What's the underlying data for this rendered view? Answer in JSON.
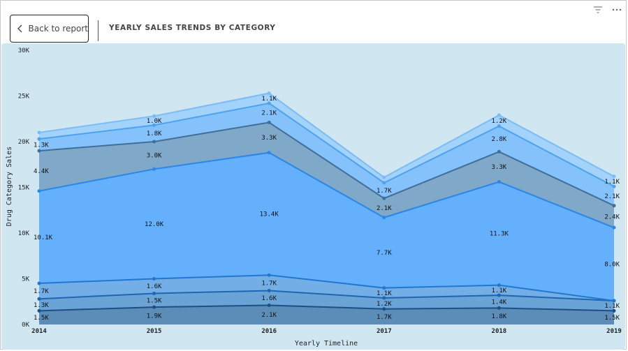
{
  "header": {
    "back_label": "Back to report",
    "title": "YEARLY SALES TRENDS BY CATEGORY",
    "back_icon": "chevron-left-icon",
    "filter_icon": "filter-icon",
    "more_icon": "more-options-icon"
  },
  "chart_data": {
    "type": "area",
    "stacked": true,
    "categories": [
      "2014",
      "2015",
      "2016",
      "2017",
      "2018",
      "2019"
    ],
    "xlabel": "Yearly Timeline",
    "ylabel": "Drug Category Sales",
    "ylim": [
      0,
      30000
    ],
    "yticks": [
      {
        "value": 0,
        "label": "0K"
      },
      {
        "value": 5000,
        "label": "5K"
      },
      {
        "value": 10000,
        "label": "10K"
      },
      {
        "value": 15000,
        "label": "15K"
      },
      {
        "value": 20000,
        "label": "20K"
      },
      {
        "value": 25000,
        "label": "25K"
      },
      {
        "value": 30000,
        "label": "30K"
      }
    ],
    "grid": false,
    "legend": "none",
    "series": [
      {
        "color": "#5b8db8",
        "line": "#1d4f86",
        "values": [
          1500,
          1900,
          2100,
          1700,
          1800,
          1500
        ],
        "labels": [
          "1.5K",
          "1.9K",
          "2.1K",
          "1.7K",
          "1.8K",
          "1.5K"
        ]
      },
      {
        "color": "#6aa3d6",
        "line": "#1f65b0",
        "values": [
          1300,
          1500,
          1600,
          1200,
          1400,
          1100
        ],
        "labels": [
          "1.3K",
          "1.5K",
          "1.6K",
          "1.2K",
          "1.4K",
          "1.1K"
        ]
      },
      {
        "color": "#73afe6",
        "line": "#2177d0",
        "values": [
          1700,
          1600,
          1700,
          1100,
          1100,
          0
        ],
        "labels": [
          "1.7K",
          "1.6K",
          "1.7K",
          "1.1K",
          "1.1K",
          ""
        ]
      },
      {
        "color": "#64b0fc",
        "line": "#2a86e8",
        "values": [
          10100,
          12000,
          13400,
          7700,
          11300,
          8000
        ],
        "labels": [
          "10.1K",
          "12.0K",
          "13.4K",
          "7.7K",
          "11.3K",
          "8.0K"
        ]
      },
      {
        "color": "#7fa8c9",
        "line": "#3f6f99",
        "values": [
          4400,
          3000,
          3300,
          2100,
          3300,
          2400
        ],
        "labels": [
          "4.4K",
          "3.0K",
          "3.3K",
          "2.1K",
          "3.3K",
          "2.4K"
        ]
      },
      {
        "color": "#85c2fb",
        "line": "#4ca2f0",
        "values": [
          1300,
          1800,
          2100,
          1700,
          2800,
          2100
        ],
        "labels": [
          "1.3K",
          "1.8K",
          "2.1K",
          "1.7K",
          "2.8K",
          "2.1K"
        ]
      },
      {
        "color": "#a3d2fb",
        "line": "#7cbcf4",
        "values": [
          700,
          1000,
          1100,
          600,
          1200,
          1100
        ],
        "labels": [
          "",
          "1.0K",
          "1.1K",
          "",
          "1.2K",
          "1.1K"
        ]
      }
    ]
  }
}
